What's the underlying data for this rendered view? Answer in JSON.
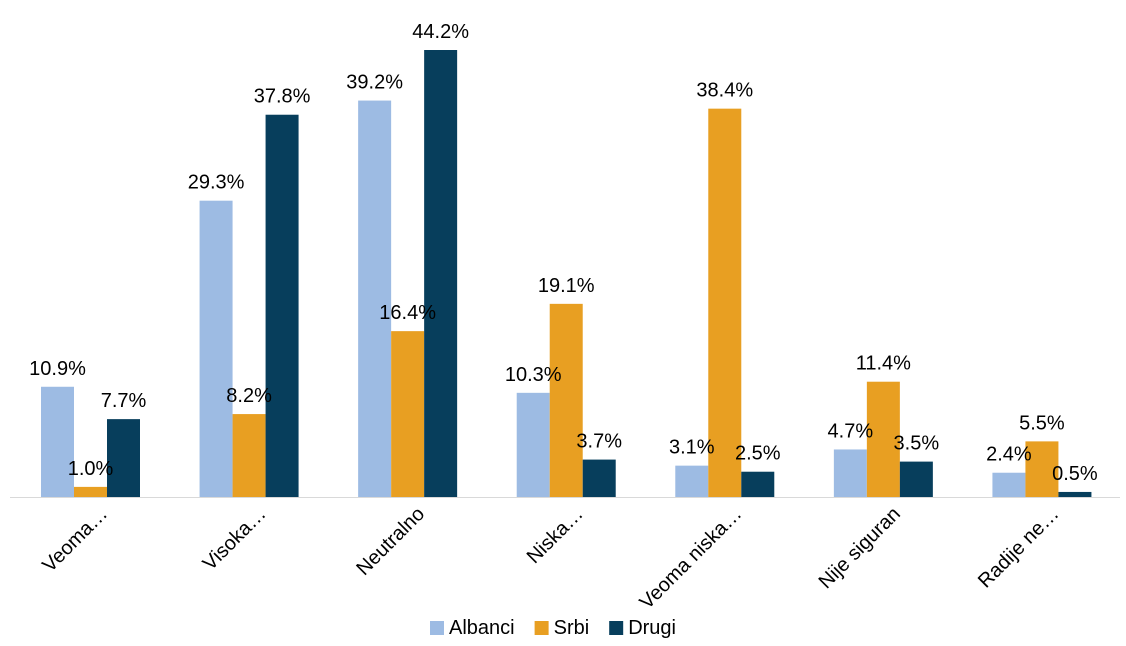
{
  "chart_data": {
    "type": "bar",
    "categories": [
      "Veoma…",
      "Visoka…",
      "Neutralno",
      "Niska…",
      "Veoma niska…",
      "Nije siguran",
      "Radije ne…"
    ],
    "series": [
      {
        "name": "Albanci",
        "values": [
          10.9,
          29.3,
          39.2,
          10.3,
          3.1,
          4.7,
          2.4
        ],
        "color": "#9dbbe3"
      },
      {
        "name": "Srbi",
        "values": [
          1.0,
          8.2,
          16.4,
          19.1,
          38.4,
          11.4,
          5.5
        ],
        "color": "#e89f22"
      },
      {
        "name": "Drugi",
        "values": [
          7.7,
          37.8,
          44.2,
          3.7,
          2.5,
          3.5,
          0.5
        ],
        "color": "#073e5c"
      }
    ],
    "value_labels": [
      [
        "10.9%",
        "29.3%",
        "39.2%",
        "10.3%",
        "3.1%",
        "4.7%",
        "2.4%"
      ],
      [
        "1.0%",
        "8.2%",
        "16.4%",
        "19.1%",
        "38.4%",
        "11.4%",
        "5.5%"
      ],
      [
        "7.7%",
        "37.8%",
        "44.2%",
        "3.7%",
        "2.5%",
        "3.5%",
        "0.5%"
      ]
    ],
    "ylim": [
      0,
      44.2
    ],
    "grid": false,
    "legend_position": "bottom",
    "axis_color": "#d9d9d9"
  }
}
